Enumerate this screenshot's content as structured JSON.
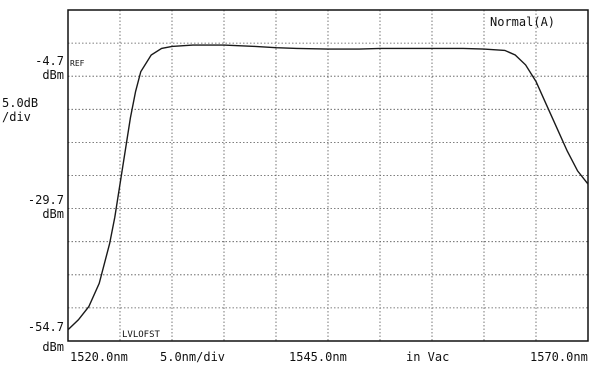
{
  "chart_data": {
    "type": "line",
    "mode_label": "Normal(A)",
    "reference": {
      "value": "-4.7",
      "unit": "dBm",
      "tag": "REF"
    },
    "scale": {
      "value": "5.0dB",
      "unit": "/div"
    },
    "mid_level": {
      "value": "-29.7",
      "unit": "dBm"
    },
    "bottom_level": {
      "value": "-54.7",
      "unit": "dBm"
    },
    "level_offset_tag": "LVLOFST",
    "x_labels": {
      "start": "1520.0nm",
      "span": "5.0nm/div",
      "center": "1545.0nm",
      "medium": "in Vac",
      "stop": "1570.0nm"
    },
    "x_range": [
      1520.0,
      1570.0
    ],
    "y_range": [
      -54.7,
      -4.7
    ],
    "grid": true,
    "x_divisions": 10,
    "y_divisions": 10,
    "series": [
      {
        "color": "#1a1a1a",
        "x": [
          1520.0,
          1521.0,
          1522.0,
          1523.0,
          1524.0,
          1524.5,
          1525.0,
          1525.5,
          1526.0,
          1526.5,
          1527.0,
          1528.0,
          1529.0,
          1530.0,
          1532.0,
          1535.0,
          1538.0,
          1540.0,
          1542.0,
          1545.0,
          1548.0,
          1550.0,
          1552.0,
          1555.0,
          1558.0,
          1560.0,
          1562.0,
          1563.0,
          1564.0,
          1565.0,
          1566.0,
          1567.0,
          1568.0,
          1569.0,
          1570.0
        ],
        "y": [
          -53.0,
          -51.5,
          -49.5,
          -46.0,
          -40.0,
          -36.0,
          -31.0,
          -26.0,
          -21.0,
          -17.0,
          -14.0,
          -11.5,
          -10.5,
          -10.2,
          -10.0,
          -10.0,
          -10.2,
          -10.4,
          -10.5,
          -10.6,
          -10.6,
          -10.5,
          -10.5,
          -10.5,
          -10.5,
          -10.6,
          -10.8,
          -11.5,
          -13.0,
          -15.5,
          -19.0,
          -22.5,
          -26.0,
          -29.0,
          -31.0
        ]
      }
    ]
  }
}
